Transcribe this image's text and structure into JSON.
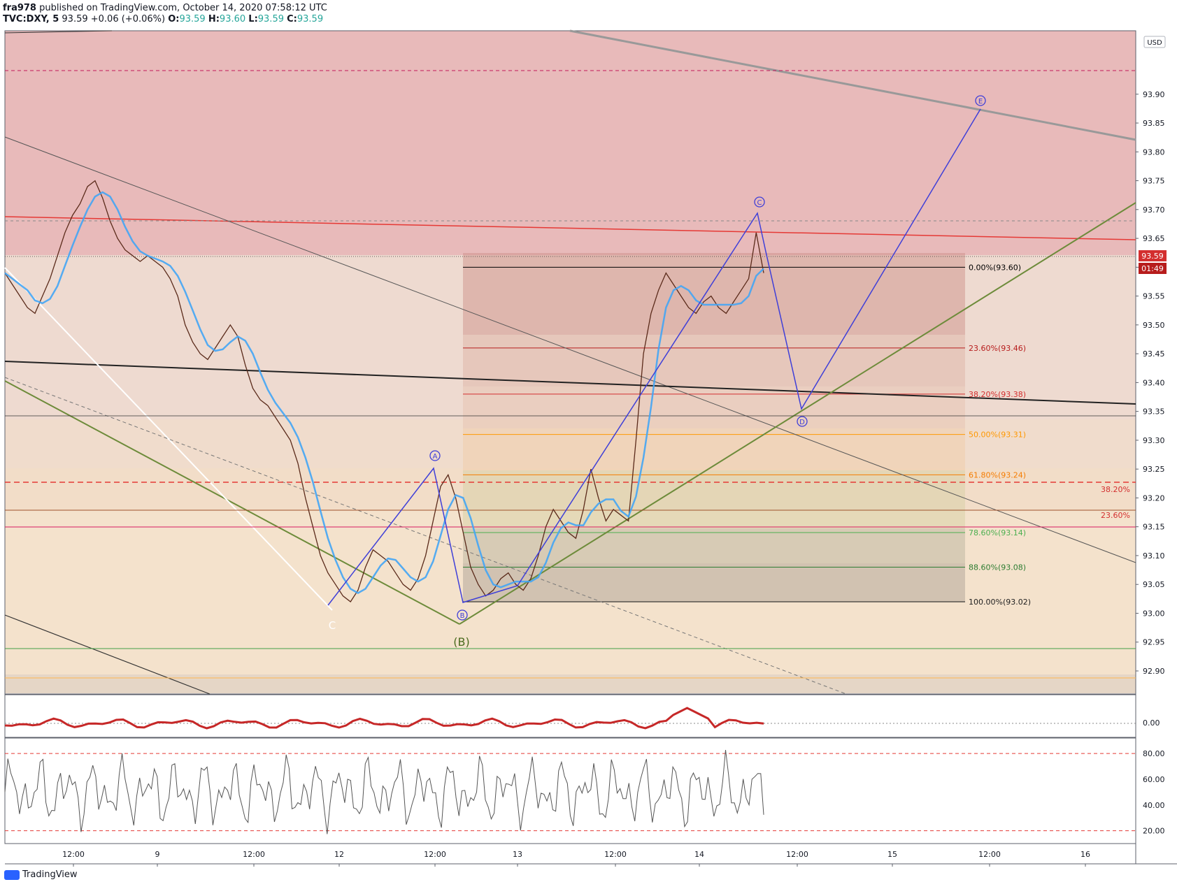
{
  "header": {
    "publisher": "fra978",
    "published_text": "published on TradingView.com, October 14, 2020 07:58:12 UTC",
    "symbol": "TVC:DXY, 5",
    "last": "93.59",
    "change": "+0.06 (+0.06%)",
    "o_label": "O:",
    "o": "93.59",
    "h_label": "H:",
    "h": "93.60",
    "l_label": "L:",
    "l": "93.59",
    "c_label": "C:",
    "c": "93.59"
  },
  "price_axis": {
    "currency": "USD",
    "current_price": "93.59",
    "countdown": "01:49"
  },
  "footer": {
    "brand": "TradingView"
  },
  "colors": {
    "up": "#26a69a",
    "down": "#ef5350",
    "price_tag": "#d32f2f",
    "wave": "#3f3fd8",
    "ma": "#42a5f5",
    "green_line": "#6d8b3a"
  },
  "chart_data": [
    {
      "type": "line",
      "title": "",
      "panel": "price",
      "y_ticks": [
        92.9,
        92.95,
        93.0,
        93.05,
        93.1,
        93.15,
        93.2,
        93.25,
        93.3,
        93.35,
        93.4,
        93.45,
        93.5,
        93.55,
        93.6,
        93.65,
        93.7,
        93.75,
        93.8,
        93.85,
        93.9
      ],
      "y_tick_labels": [
        "92.90",
        "92.95",
        "93.00",
        "93.05",
        "93.10",
        "93.15",
        "93.20",
        "93.25",
        "93.30",
        "93.35",
        "93.40",
        "93.45",
        "93.50",
        "93.55",
        "93.60",
        "93.65",
        "93.70",
        "93.75",
        "93.80",
        "93.85",
        "93.90"
      ],
      "ylim": [
        92.86,
        94.01
      ],
      "x_ticks": [
        "12:00",
        "9",
        "12:00",
        "12",
        "12:00",
        "13",
        "12:00",
        "14",
        "12:00",
        "15",
        "12:00",
        "16"
      ],
      "series": [
        {
          "values": [
            93.59,
            93.57,
            93.55,
            93.53,
            93.52,
            93.55,
            93.58,
            93.62,
            93.66,
            93.69,
            93.71,
            93.74,
            93.75,
            93.72,
            93.68,
            93.65,
            93.63,
            93.62,
            93.61,
            93.62,
            93.61,
            93.6,
            93.58,
            93.55,
            93.5,
            93.47,
            93.45,
            93.44,
            93.46,
            93.48,
            93.5,
            93.48,
            93.43,
            93.39,
            93.37,
            93.36,
            93.34,
            93.32,
            93.3,
            93.26,
            93.2,
            93.15,
            93.1,
            93.07,
            93.05,
            93.03,
            93.02,
            93.04,
            93.08,
            93.11,
            93.1,
            93.09,
            93.07,
            93.05,
            93.04,
            93.06,
            93.1,
            93.16,
            93.22,
            93.24,
            93.2,
            93.14,
            93.08,
            93.05,
            93.03,
            93.04,
            93.06,
            93.07,
            93.05,
            93.04,
            93.06,
            93.1,
            93.15,
            93.18,
            93.16,
            93.14,
            93.13,
            93.18,
            93.25,
            93.2,
            93.16,
            93.18,
            93.17,
            93.16,
            93.3,
            93.45,
            93.52,
            93.56,
            93.59,
            93.57,
            93.55,
            93.53,
            93.52,
            93.54,
            93.55,
            93.53,
            93.52,
            93.54,
            93.56,
            93.58,
            93.66,
            93.59
          ]
        }
      ],
      "wave_labels": [
        "A",
        "B",
        "C",
        "D",
        "E",
        "(B)",
        "C"
      ],
      "fibonacci": [
        {
          "label": "0.00%(93.60)",
          "value": 93.6
        },
        {
          "label": "23.60%(93.46)",
          "value": 93.46
        },
        {
          "label": "38.20%(93.38)",
          "value": 93.38
        },
        {
          "label": "50.00%(93.31)",
          "value": 93.31
        },
        {
          "label": "61.80%(93.24)",
          "value": 93.24
        },
        {
          "label": "78.60%(93.14)",
          "value": 93.14
        },
        {
          "label": "88.60%(93.08)",
          "value": 93.08
        },
        {
          "label": "100.00%(93.02)",
          "value": 93.02
        }
      ],
      "other_fib_labels": [
        {
          "label": "38.20%",
          "value": 93.215
        },
        {
          "label": "23.60%",
          "value": 93.17
        }
      ]
    },
    {
      "type": "line",
      "panel": "oscillator",
      "y_tick_labels": [
        "0.00"
      ]
    },
    {
      "type": "line",
      "panel": "rsi",
      "y_tick_labels": [
        "80.00",
        "60.00",
        "40.00",
        "20.00"
      ],
      "ylim": [
        10,
        92
      ],
      "levels": [
        80,
        20
      ]
    }
  ]
}
